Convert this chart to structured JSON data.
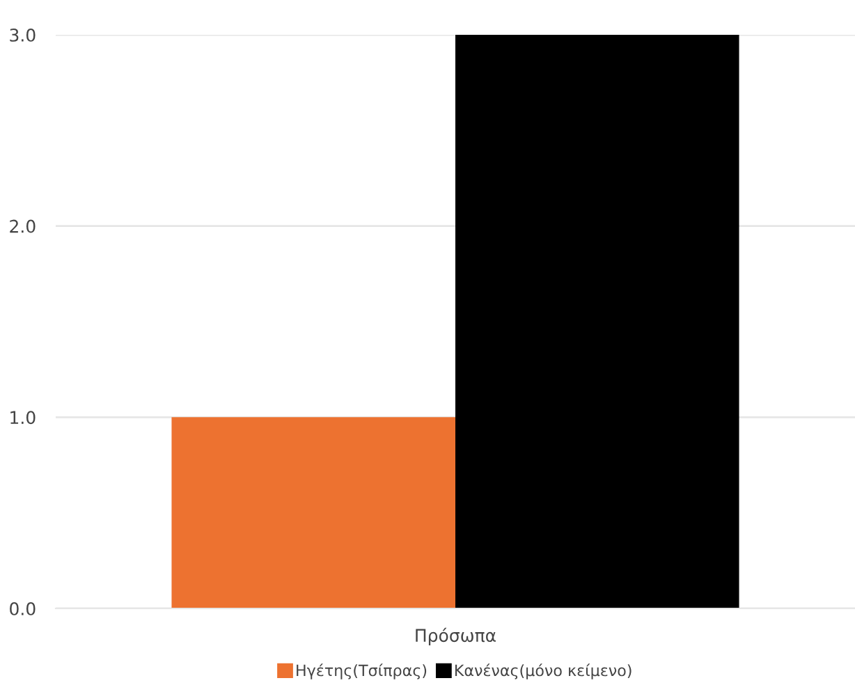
{
  "chart_data": {
    "type": "bar",
    "categories": [
      "Πρόσωπα"
    ],
    "series": [
      {
        "name": "Ηγέτης(Τσίπρας)",
        "color": "#ed7230",
        "values": [
          1.0
        ]
      },
      {
        "name": "Κανένας(μόνο κείμενο)",
        "color": "#000000",
        "values": [
          3.0
        ]
      }
    ],
    "ylim": [
      0,
      3
    ],
    "yticks": [
      {
        "value": 0,
        "label": "0.0"
      },
      {
        "value": 1,
        "label": "1.0"
      },
      {
        "value": 2,
        "label": "2.0"
      },
      {
        "value": 3,
        "label": "3.0"
      }
    ],
    "grid": "y",
    "legend": "bottom"
  }
}
